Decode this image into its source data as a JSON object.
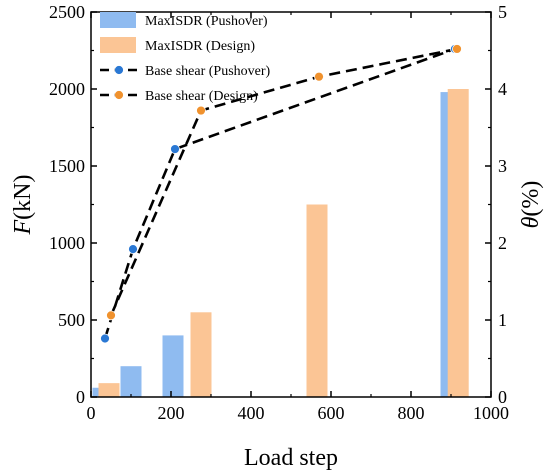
{
  "chart_data": {
    "type": "bar+line",
    "xlabel": "Load step",
    "ylabel_left": {
      "var": "F",
      "unit": "(kN)"
    },
    "ylabel_right": {
      "var": "θ",
      "unit": "(%)"
    },
    "xlim": [
      0,
      1000
    ],
    "ylim_left": [
      0,
      2500
    ],
    "ylim_right": [
      0,
      5
    ],
    "xticks": [
      "0",
      "200",
      "400",
      "600",
      "800",
      "1000"
    ],
    "yticks_left": [
      "0",
      "500",
      "1000",
      "1500",
      "2000",
      "2500"
    ],
    "yticks_right": [
      "0",
      "1",
      "2",
      "3",
      "4",
      "5"
    ],
    "grid": false,
    "legend_position": "top-left",
    "bar_series": [
      {
        "name": "MaxISDR (Pushover)",
        "color": "#8fbbf0",
        "axis": "right",
        "x": [
          30,
          100,
          205,
          900
        ],
        "values": [
          0.12,
          0.4,
          0.8,
          3.96
        ]
      },
      {
        "name": "MaxISDR (Design)",
        "color": "#fbc595",
        "axis": "right",
        "x": [
          45,
          275,
          565,
          918
        ],
        "values": [
          0.18,
          1.1,
          2.5,
          4.0
        ]
      }
    ],
    "line_series": [
      {
        "name": "Base shear (Pushover)",
        "axis": "left",
        "line_color": "#000000",
        "marker_color": "#2a78d4",
        "x": [
          35,
          105,
          210,
          910
        ],
        "y": [
          380,
          960,
          1610,
          2260
        ]
      },
      {
        "name": "Base shear (Design)",
        "axis": "left",
        "line_color": "#000000",
        "marker_color": "#f0922e",
        "x": [
          50,
          275,
          570,
          915
        ],
        "y": [
          530,
          1860,
          2080,
          2260
        ]
      }
    ]
  }
}
